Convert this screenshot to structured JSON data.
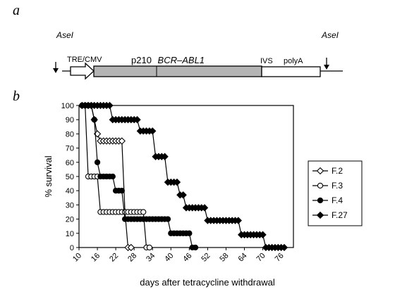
{
  "panels": {
    "a": "a",
    "b": "b"
  },
  "construct": {
    "site_left": "AseI",
    "site_right": "AseI",
    "promoter": "TRE/CMV",
    "insert_prefix": "p210",
    "insert_gene": "BCR–ABL1",
    "ivs": "IVS",
    "polya": "polyA",
    "colors": {
      "insert_fill": "#b4b4b4",
      "line": "#000000"
    }
  },
  "chart_data": {
    "type": "line",
    "title": "",
    "xlabel": "days after tetracycline withdrawal",
    "ylabel": "% survival",
    "xlim": [
      10,
      80
    ],
    "ylim": [
      0,
      100
    ],
    "xticks": [
      10,
      16,
      22,
      28,
      34,
      40,
      46,
      52,
      58,
      64,
      70,
      76
    ],
    "yticks": [
      0,
      10,
      20,
      30,
      40,
      50,
      60,
      70,
      80,
      90,
      100
    ],
    "grid": false,
    "legend_position": "right",
    "series": [
      {
        "name": "F.2",
        "marker": "diamond-open",
        "x": [
          11,
          12,
          13,
          14,
          15,
          16,
          17,
          18,
          19,
          20,
          21,
          22,
          23,
          24,
          25,
          26,
          27
        ],
        "y": [
          100,
          100,
          100,
          100,
          90,
          80,
          75,
          75,
          75,
          75,
          75,
          75,
          75,
          75,
          25,
          0,
          0
        ]
      },
      {
        "name": "F.3",
        "marker": "circle-open",
        "x": [
          11,
          12,
          13,
          14,
          15,
          16,
          17,
          18,
          19,
          20,
          21,
          22,
          23,
          24,
          25,
          26,
          27,
          28,
          29,
          30,
          31,
          32,
          33
        ],
        "y": [
          100,
          100,
          50,
          50,
          50,
          50,
          25,
          25,
          25,
          25,
          25,
          25,
          25,
          25,
          25,
          25,
          25,
          25,
          25,
          25,
          25,
          0,
          0
        ]
      },
      {
        "name": "F.4",
        "marker": "circle-filled",
        "x": [
          11,
          12,
          13,
          14,
          15,
          16,
          17,
          18,
          19,
          20,
          21,
          22,
          23,
          24,
          25,
          26,
          27,
          28,
          29,
          30,
          31,
          32,
          33,
          34,
          35,
          36,
          37,
          38,
          39,
          40,
          41,
          42,
          43,
          44,
          45,
          46,
          47,
          48
        ],
        "y": [
          100,
          100,
          100,
          100,
          90,
          60,
          50,
          50,
          50,
          50,
          50,
          40,
          40,
          40,
          20,
          20,
          20,
          20,
          20,
          20,
          20,
          20,
          20,
          20,
          20,
          20,
          20,
          20,
          20,
          10,
          10,
          10,
          10,
          10,
          10,
          10,
          0,
          0
        ]
      },
      {
        "name": "F.27",
        "marker": "diamond-filled",
        "x": [
          11,
          12,
          13,
          14,
          15,
          16,
          17,
          18,
          19,
          20,
          21,
          22,
          23,
          24,
          25,
          26,
          27,
          28,
          29,
          30,
          31,
          32,
          33,
          34,
          35,
          36,
          37,
          38,
          39,
          40,
          41,
          42,
          43,
          44,
          45,
          46,
          47,
          48,
          49,
          50,
          51,
          52,
          53,
          54,
          55,
          56,
          57,
          58,
          59,
          60,
          61,
          62,
          63,
          64,
          65,
          66,
          67,
          68,
          69,
          70,
          71,
          72,
          73,
          74,
          75,
          76,
          77
        ],
        "y": [
          100,
          100,
          100,
          100,
          100,
          100,
          100,
          100,
          100,
          100,
          90,
          90,
          90,
          90,
          90,
          90,
          90,
          90,
          90,
          82,
          82,
          82,
          82,
          82,
          64,
          64,
          64,
          64,
          46,
          46,
          46,
          46,
          37,
          37,
          28,
          28,
          28,
          28,
          28,
          28,
          28,
          19,
          19,
          19,
          19,
          19,
          19,
          19,
          19,
          19,
          19,
          19,
          9,
          9,
          9,
          9,
          9,
          9,
          9,
          9,
          0,
          0,
          0,
          0,
          0,
          0,
          0
        ]
      }
    ]
  }
}
